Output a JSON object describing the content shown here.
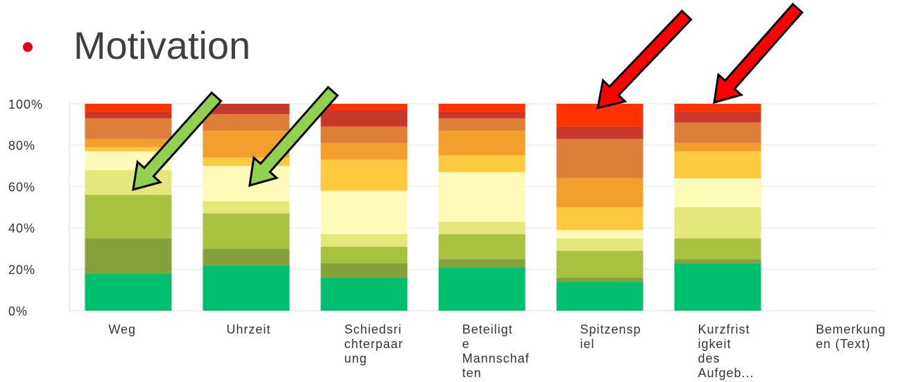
{
  "chart_data": {
    "type": "stacked-bar",
    "title": "Motivation",
    "categories": [
      "Weg",
      "Uhrzeit",
      "Schiedsri\nchterpaar\nung",
      "Beteiligt\ne\nMannschaf\nten",
      "Spitzensp\niel",
      "Kurzfrist\nigkeit\ndes\nAufgeb...",
      "Bemerkung\nen (Text)"
    ],
    "series": [
      {
        "color": "#00bf6f",
        "values": [
          18,
          22,
          16,
          21,
          14,
          23,
          null
        ]
      },
      {
        "color": "#86a03b",
        "values": [
          17,
          8,
          7,
          4,
          2,
          2,
          null
        ]
      },
      {
        "color": "#a8c23f",
        "values": [
          21,
          17,
          8,
          12,
          13,
          10,
          null
        ]
      },
      {
        "color": "#e4e77a",
        "values": [
          12,
          6,
          6,
          6,
          6,
          15,
          null
        ]
      },
      {
        "color": "#fdf9b8",
        "values": [
          9,
          17,
          21,
          24,
          4,
          14,
          null
        ]
      },
      {
        "color": "#fdc93f",
        "values": [
          2,
          4,
          15,
          8,
          11,
          13,
          null
        ]
      },
      {
        "color": "#f39f2e",
        "values": [
          4,
          13,
          8,
          12,
          14,
          4,
          null
        ]
      },
      {
        "color": "#de7e38",
        "values": [
          10,
          8,
          8,
          6,
          19,
          10,
          null
        ]
      },
      {
        "color": "#c6372c",
        "values": [
          3,
          5,
          8,
          3,
          6,
          5,
          null
        ]
      },
      {
        "color": "#ff3300",
        "values": [
          4,
          0,
          3,
          4,
          11,
          4,
          null
        ]
      }
    ],
    "ylim": [
      0,
      100
    ],
    "yticks": [
      {
        "value": 0,
        "label": "0%"
      },
      {
        "value": 20,
        "label": "20%"
      },
      {
        "value": 40,
        "label": "40%"
      },
      {
        "value": 60,
        "label": "60%"
      },
      {
        "value": 80,
        "label": "80%"
      },
      {
        "value": 100,
        "label": "100%"
      }
    ],
    "grid": true
  }
}
